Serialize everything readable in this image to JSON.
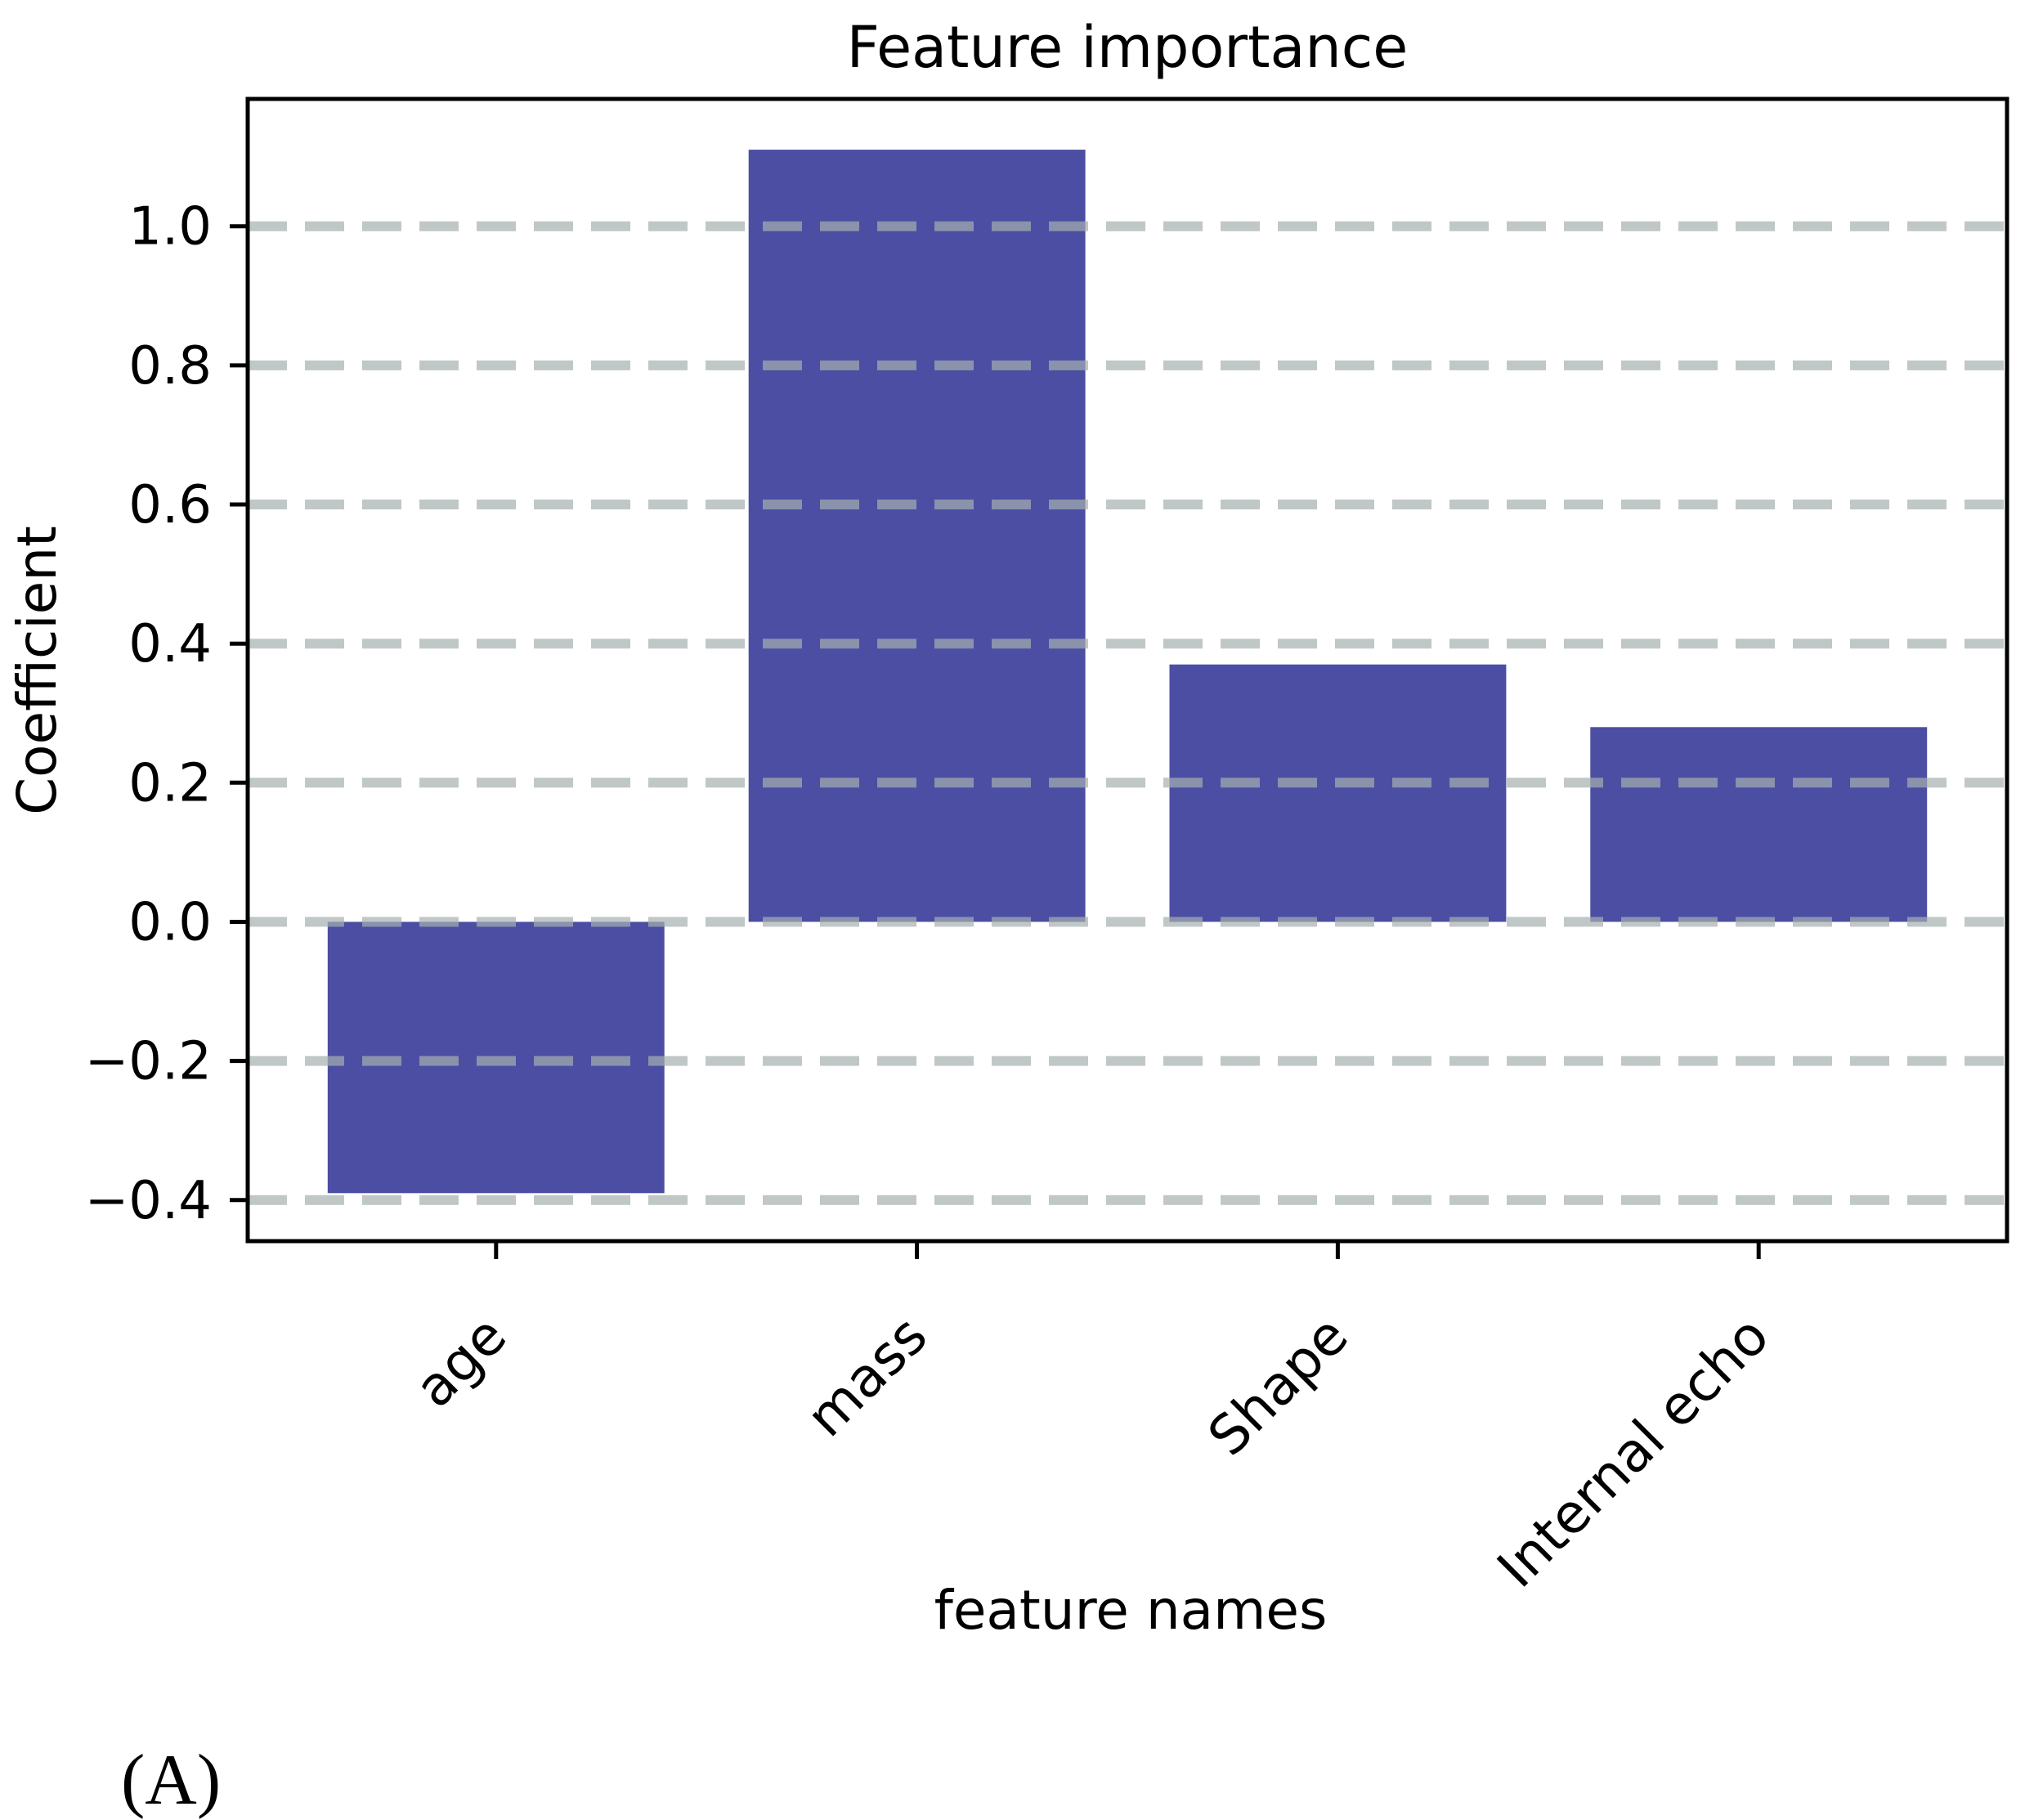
{
  "figure": {
    "caption": "(A)"
  },
  "chart_data": {
    "type": "bar",
    "title": "Feature importance",
    "xlabel": "feature names",
    "ylabel": "Coefficient",
    "categories": [
      "age",
      "mass",
      "Shape",
      "Internal echo"
    ],
    "values": [
      -0.39,
      1.11,
      0.37,
      0.28
    ],
    "bar_color": "#4B4EA3",
    "grid": true,
    "grid_style": "dashed",
    "grid_color": "rgba(165,175,175,0.7)",
    "yticks": [
      1.0,
      0.8,
      0.6,
      0.4,
      0.2,
      0.0,
      -0.2,
      -0.4
    ],
    "ytick_labels": [
      "1.0",
      "0.8",
      "0.6",
      "0.4",
      "0.2",
      "0.0",
      "−0.2",
      "−0.4"
    ],
    "ylim": [
      -0.459,
      1.183
    ],
    "xlim": [
      -0.59,
      3.59
    ],
    "bar_width": 0.8,
    "x_tick_rotation": 45,
    "legend": "none"
  }
}
